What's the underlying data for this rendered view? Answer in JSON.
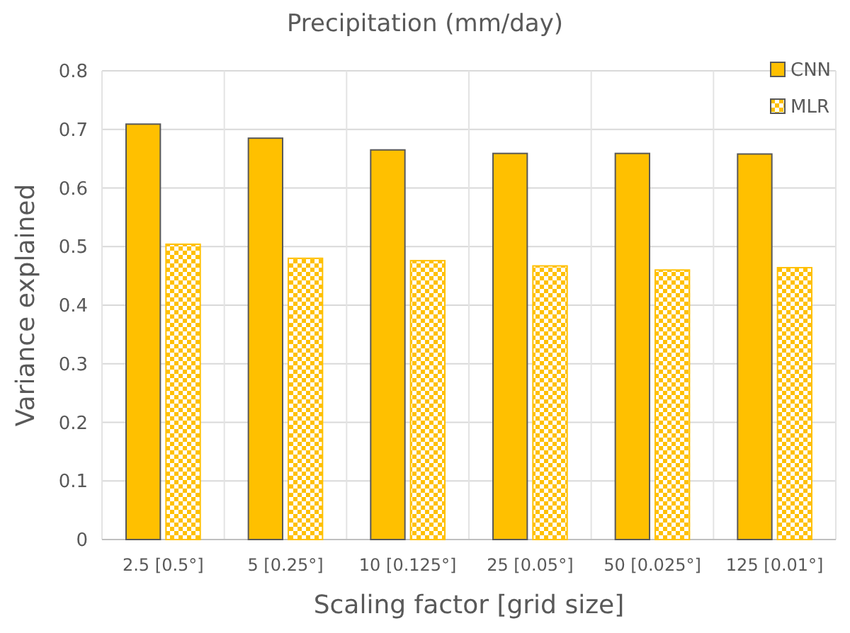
{
  "chart_data": {
    "type": "bar",
    "title": "Precipitation (mm/day)",
    "xlabel": "Scaling factor [grid size]",
    "ylabel": "Variance explained",
    "categories": [
      "2.5 [0.5°]",
      "5 [0.25°]",
      "10 [0.125°]",
      "25 [0.05°]",
      "50 [0.025°]",
      "125 [0.01°]"
    ],
    "series": [
      {
        "name": "CNN",
        "color": "#ffc000",
        "values": [
          0.709,
          0.685,
          0.665,
          0.659,
          0.659,
          0.658
        ]
      },
      {
        "name": "MLR",
        "color": "#ffc000",
        "values": [
          0.504,
          0.48,
          0.476,
          0.467,
          0.46,
          0.464
        ]
      }
    ],
    "ylim": [
      0,
      0.8
    ],
    "yticks": [
      {
        "value": 0,
        "label": "0"
      },
      0.1,
      0.2,
      0.3,
      0.4,
      0.5,
      0.6,
      0.7,
      0.8
    ],
    "grid": true,
    "legend": "top right"
  }
}
